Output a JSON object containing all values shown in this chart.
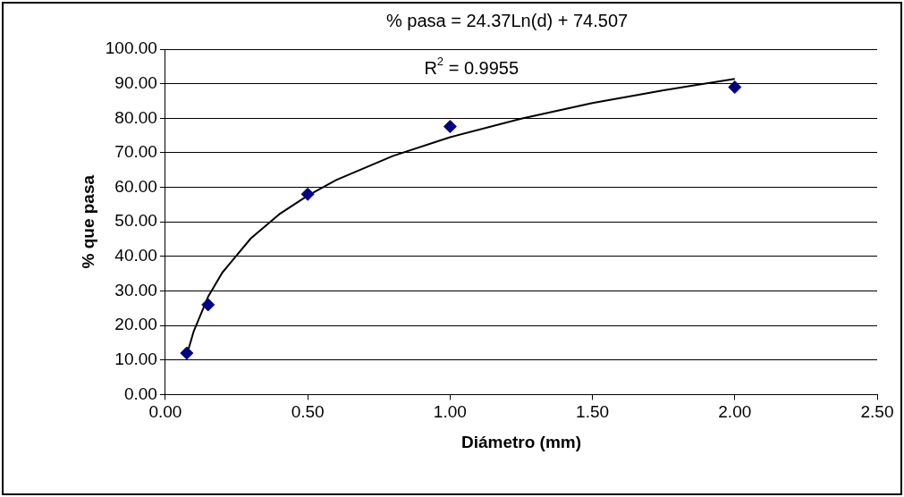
{
  "chart_data": {
    "type": "scatter",
    "xlabel": "Diámetro (mm)",
    "ylabel": "% que pasa",
    "annotations": [
      "% pasa = 24.37Ln(d) + 74.507",
      "R$^{2}$ = 0.9955"
    ],
    "x": [
      0.075,
      0.15,
      0.5,
      1.0,
      2.0
    ],
    "series": [
      {
        "type": "scatter",
        "color": "#000080",
        "marker": "diamond",
        "values": [
          12,
          26,
          58,
          77.6,
          89
        ]
      },
      {
        "type": "line",
        "color": "#000000",
        "marker": "none",
        "x": [
          0.075,
          0.1,
          0.15,
          0.2,
          0.3,
          0.4,
          0.5,
          0.6,
          0.8,
          1.0,
          1.25,
          1.5,
          1.75,
          2.0
        ],
        "values": [
          11.4,
          18.4,
          28.3,
          35.3,
          45.2,
          52.2,
          57.6,
          62.1,
          69.1,
          74.5,
          79.9,
          84.4,
          88.1,
          91.4
        ]
      }
    ],
    "xlim": [
      0,
      2.5
    ],
    "xticks": [
      {
        "value": 0,
        "label": "0.00"
      },
      {
        "value": 0.5,
        "label": "0.50"
      },
      {
        "value": 1,
        "label": "1.00"
      },
      {
        "value": 1.5,
        "label": "1.50"
      },
      {
        "value": 2,
        "label": "2.00"
      },
      {
        "value": 2.5,
        "label": "2.50"
      }
    ],
    "ylim": [
      0,
      100
    ],
    "yticks": [
      {
        "value": 0,
        "label": "0.00"
      },
      {
        "value": 10,
        "label": "10.00"
      },
      {
        "value": 20,
        "label": "20.00"
      },
      {
        "value": 30,
        "label": "30.00"
      },
      {
        "value": 40,
        "label": "40.00"
      },
      {
        "value": 50,
        "label": "50.00"
      },
      {
        "value": 60,
        "label": "60.00"
      },
      {
        "value": 70,
        "label": "70.00"
      },
      {
        "value": 80,
        "label": "80.00"
      },
      {
        "value": 90,
        "label": "90.00"
      },
      {
        "value": 100,
        "label": "100.00"
      }
    ],
    "grid": "y",
    "legend": false
  }
}
